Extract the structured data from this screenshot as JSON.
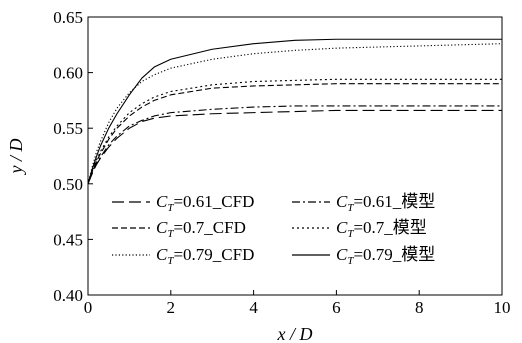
{
  "chart_data": {
    "type": "line",
    "xlabel": "x / D",
    "ylabel": "y / D",
    "xlim": [
      0,
      10
    ],
    "ylim": [
      0.4,
      0.65
    ],
    "xticks": [
      0,
      2,
      4,
      6,
      8,
      10
    ],
    "yticks": [
      0.4,
      0.45,
      0.5,
      0.55,
      0.6,
      0.65
    ],
    "xtick_labels": [
      "0",
      "2",
      "4",
      "6",
      "8",
      "10"
    ],
    "ytick_labels": [
      "0.40",
      "0.45",
      "0.50",
      "0.55",
      "0.60",
      "0.65"
    ],
    "grid": false,
    "legend_position": "lower-center",
    "series": [
      {
        "legend_prefix": "C",
        "legend_subscript": "T",
        "legend_suffix": "=0.61_CFD",
        "dash": "long-dash",
        "x": [
          0,
          0.1,
          0.2,
          0.3,
          0.5,
          0.7,
          1.0,
          1.3,
          1.6,
          2.0,
          3.0,
          4.0,
          5.0,
          6.0,
          7.0,
          8.0,
          9.0,
          10.0
        ],
        "y": [
          0.5,
          0.509,
          0.517,
          0.523,
          0.533,
          0.541,
          0.55,
          0.556,
          0.559,
          0.561,
          0.563,
          0.564,
          0.565,
          0.566,
          0.566,
          0.566,
          0.566,
          0.566
        ]
      },
      {
        "legend_prefix": "C",
        "legend_subscript": "T",
        "legend_suffix": "=0.61_模型",
        "dash": "dash-dot",
        "x": [
          0,
          0.1,
          0.2,
          0.3,
          0.5,
          0.7,
          1.0,
          1.3,
          1.6,
          2.0,
          3.0,
          4.0,
          5.0,
          6.0,
          7.0,
          8.0,
          9.0,
          10.0
        ],
        "y": [
          0.5,
          0.51,
          0.518,
          0.524,
          0.535,
          0.543,
          0.552,
          0.557,
          0.561,
          0.564,
          0.567,
          0.569,
          0.57,
          0.57,
          0.57,
          0.57,
          0.57,
          0.57
        ]
      },
      {
        "legend_prefix": "C",
        "legend_subscript": "T",
        "legend_suffix": "=0.7_CFD",
        "dash": "short-dash",
        "x": [
          0,
          0.1,
          0.2,
          0.3,
          0.5,
          0.7,
          1.0,
          1.3,
          1.6,
          2.0,
          3.0,
          4.0,
          5.0,
          6.0,
          7.0,
          8.0,
          9.0,
          10.0
        ],
        "y": [
          0.5,
          0.511,
          0.52,
          0.527,
          0.54,
          0.55,
          0.561,
          0.569,
          0.575,
          0.58,
          0.586,
          0.588,
          0.589,
          0.59,
          0.59,
          0.59,
          0.59,
          0.59
        ]
      },
      {
        "legend_prefix": "C",
        "legend_subscript": "T",
        "legend_suffix": "=0.7_模型",
        "dash": "dotted",
        "x": [
          0,
          0.1,
          0.2,
          0.3,
          0.5,
          0.7,
          1.0,
          1.3,
          1.6,
          2.0,
          3.0,
          4.0,
          5.0,
          6.0,
          7.0,
          8.0,
          9.0,
          10.0
        ],
        "y": [
          0.5,
          0.512,
          0.521,
          0.529,
          0.542,
          0.552,
          0.564,
          0.572,
          0.578,
          0.583,
          0.589,
          0.592,
          0.593,
          0.594,
          0.594,
          0.594,
          0.594,
          0.594
        ]
      },
      {
        "legend_prefix": "C",
        "legend_subscript": "T",
        "legend_suffix": "=0.79_CFD",
        "dash": "fine-dotted",
        "x": [
          0,
          0.1,
          0.2,
          0.3,
          0.5,
          0.7,
          1.0,
          1.3,
          1.6,
          2.0,
          3.0,
          4.0,
          5.0,
          6.0,
          7.0,
          8.0,
          9.0,
          10.0
        ],
        "y": [
          0.5,
          0.515,
          0.528,
          0.538,
          0.555,
          0.568,
          0.582,
          0.592,
          0.598,
          0.604,
          0.612,
          0.617,
          0.62,
          0.622,
          0.623,
          0.624,
          0.625,
          0.626
        ]
      },
      {
        "legend_prefix": "C",
        "legend_subscript": "T",
        "legend_suffix": "=0.79_模型",
        "dash": "solid",
        "x": [
          0,
          0.1,
          0.2,
          0.3,
          0.5,
          0.7,
          1.0,
          1.3,
          1.6,
          2.0,
          3.0,
          4.0,
          5.0,
          6.0,
          7.0,
          8.0,
          9.0,
          10.0
        ],
        "y": [
          0.5,
          0.513,
          0.524,
          0.534,
          0.55,
          0.563,
          0.58,
          0.595,
          0.605,
          0.612,
          0.621,
          0.626,
          0.629,
          0.63,
          0.63,
          0.63,
          0.63,
          0.63
        ]
      }
    ]
  }
}
